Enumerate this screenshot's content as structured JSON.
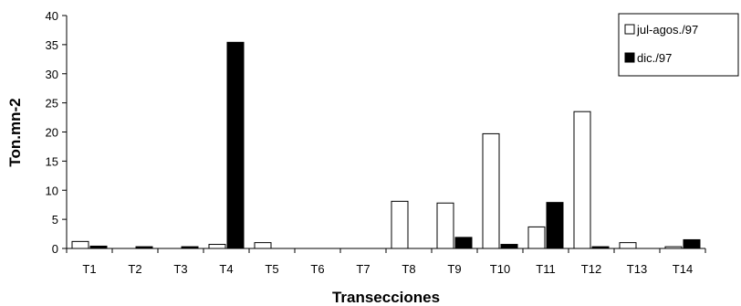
{
  "chart_data": {
    "type": "bar",
    "title": "",
    "xlabel": "Transecciones",
    "ylabel": "Ton.mn-2",
    "ylim": [
      0,
      40
    ],
    "yticks": [
      0,
      5,
      10,
      15,
      20,
      25,
      30,
      35,
      40
    ],
    "grid": false,
    "legend_position": "top-right",
    "categories": [
      "T1",
      "T2",
      "T3",
      "T4",
      "T5",
      "T6",
      "T7",
      "T8",
      "T9",
      "T10",
      "T11",
      "T12",
      "T13",
      "T14"
    ],
    "series": [
      {
        "name": "jul-agos./97",
        "fill": "#ffffff",
        "values": [
          1.2,
          0,
          0,
          0.7,
          1.0,
          0,
          0,
          8.1,
          7.8,
          19.7,
          3.7,
          23.5,
          1.0,
          0.3
        ]
      },
      {
        "name": "dic./97",
        "fill": "#000000",
        "values": [
          0.4,
          0.3,
          0.3,
          35.4,
          0,
          0,
          0,
          0,
          1.9,
          0.7,
          7.9,
          0.3,
          0,
          1.5
        ]
      }
    ]
  }
}
